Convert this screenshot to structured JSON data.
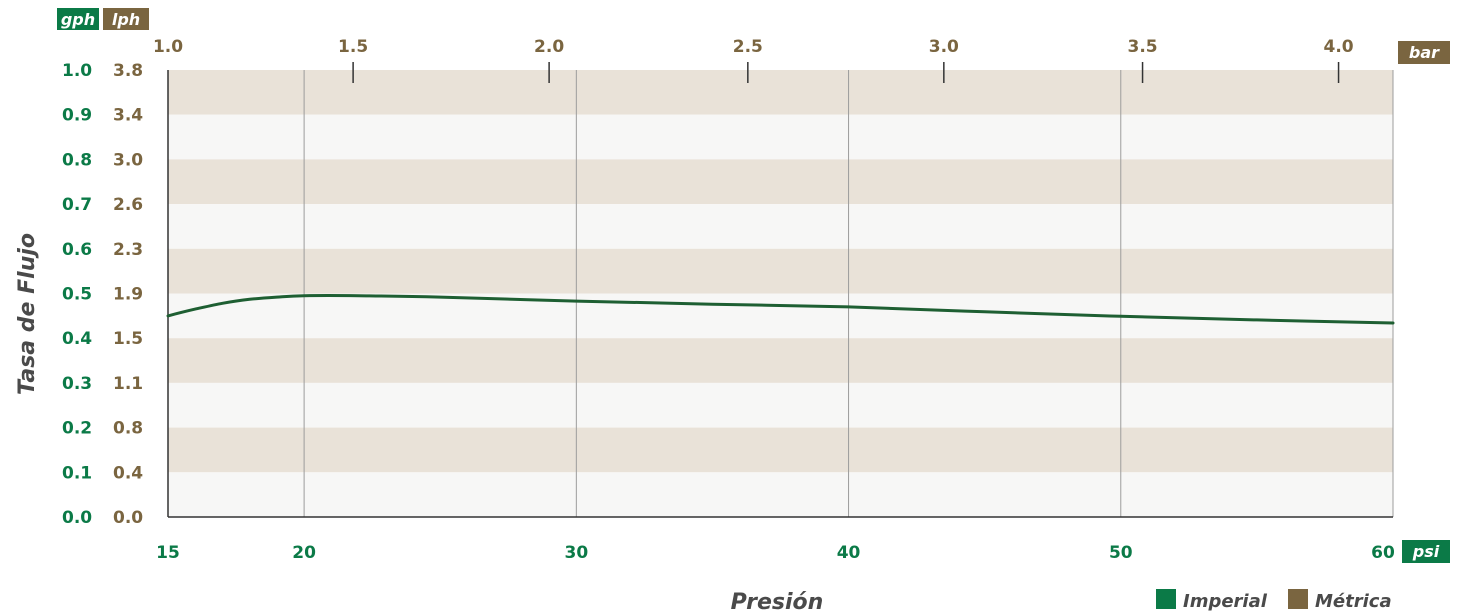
{
  "chart_data": {
    "type": "line",
    "title": "",
    "xlabel": "Presión",
    "ylabel": "Tasa de Flujo",
    "x_unit": "psi",
    "x_top_unit": "bar",
    "y_units": [
      "gph",
      "lph"
    ],
    "x": [
      15,
      20,
      30,
      40,
      50,
      60
    ],
    "xlim": [
      15,
      60
    ],
    "ylim": [
      0.0,
      1.0
    ],
    "grid": true,
    "x_ticks": [
      "15",
      "20",
      "30",
      "40",
      "50",
      "60"
    ],
    "x_top_ticks": [
      "1.0",
      "1.5",
      "2.0",
      "2.5",
      "3.0",
      "3.5",
      "4.0"
    ],
    "x_top_tick_psi": [
      14.5,
      21.8,
      29.0,
      36.3,
      43.5,
      50.8,
      58.0
    ],
    "y_ticks_gph": [
      "0.0",
      "0.1",
      "0.2",
      "0.3",
      "0.4",
      "0.5",
      "0.6",
      "0.7",
      "0.8",
      "0.9",
      "1.0"
    ],
    "y_ticks_lph": [
      "0.0",
      "0.4",
      "0.8",
      "1.1",
      "1.5",
      "1.9",
      "2.3",
      "2.6",
      "3.0",
      "3.4",
      "3.8"
    ],
    "series": [
      {
        "points": [
          [
            15,
            0.45
          ],
          [
            16,
            0.465
          ],
          [
            17,
            0.478
          ],
          [
            18,
            0.487
          ],
          [
            19,
            0.492
          ],
          [
            20,
            0.495
          ],
          [
            22,
            0.495
          ],
          [
            25,
            0.492
          ],
          [
            30,
            0.483
          ],
          [
            35,
            0.476
          ],
          [
            40,
            0.47
          ],
          [
            45,
            0.459
          ],
          [
            50,
            0.449
          ],
          [
            55,
            0.441
          ],
          [
            60,
            0.434
          ]
        ]
      }
    ],
    "legend": [
      {
        "label": "Imperial",
        "color": "#0b7a47"
      },
      {
        "label": "Métrica",
        "color": "#7a6540"
      }
    ],
    "legend_position": "bottom-right",
    "colors": {
      "imperial": "#0b7a47",
      "metric": "#7a6540",
      "line": "#1e5f32",
      "band_dark": "#e9e2d8",
      "band_light": "#f7f7f6",
      "grid": "#9c9c9c"
    }
  }
}
